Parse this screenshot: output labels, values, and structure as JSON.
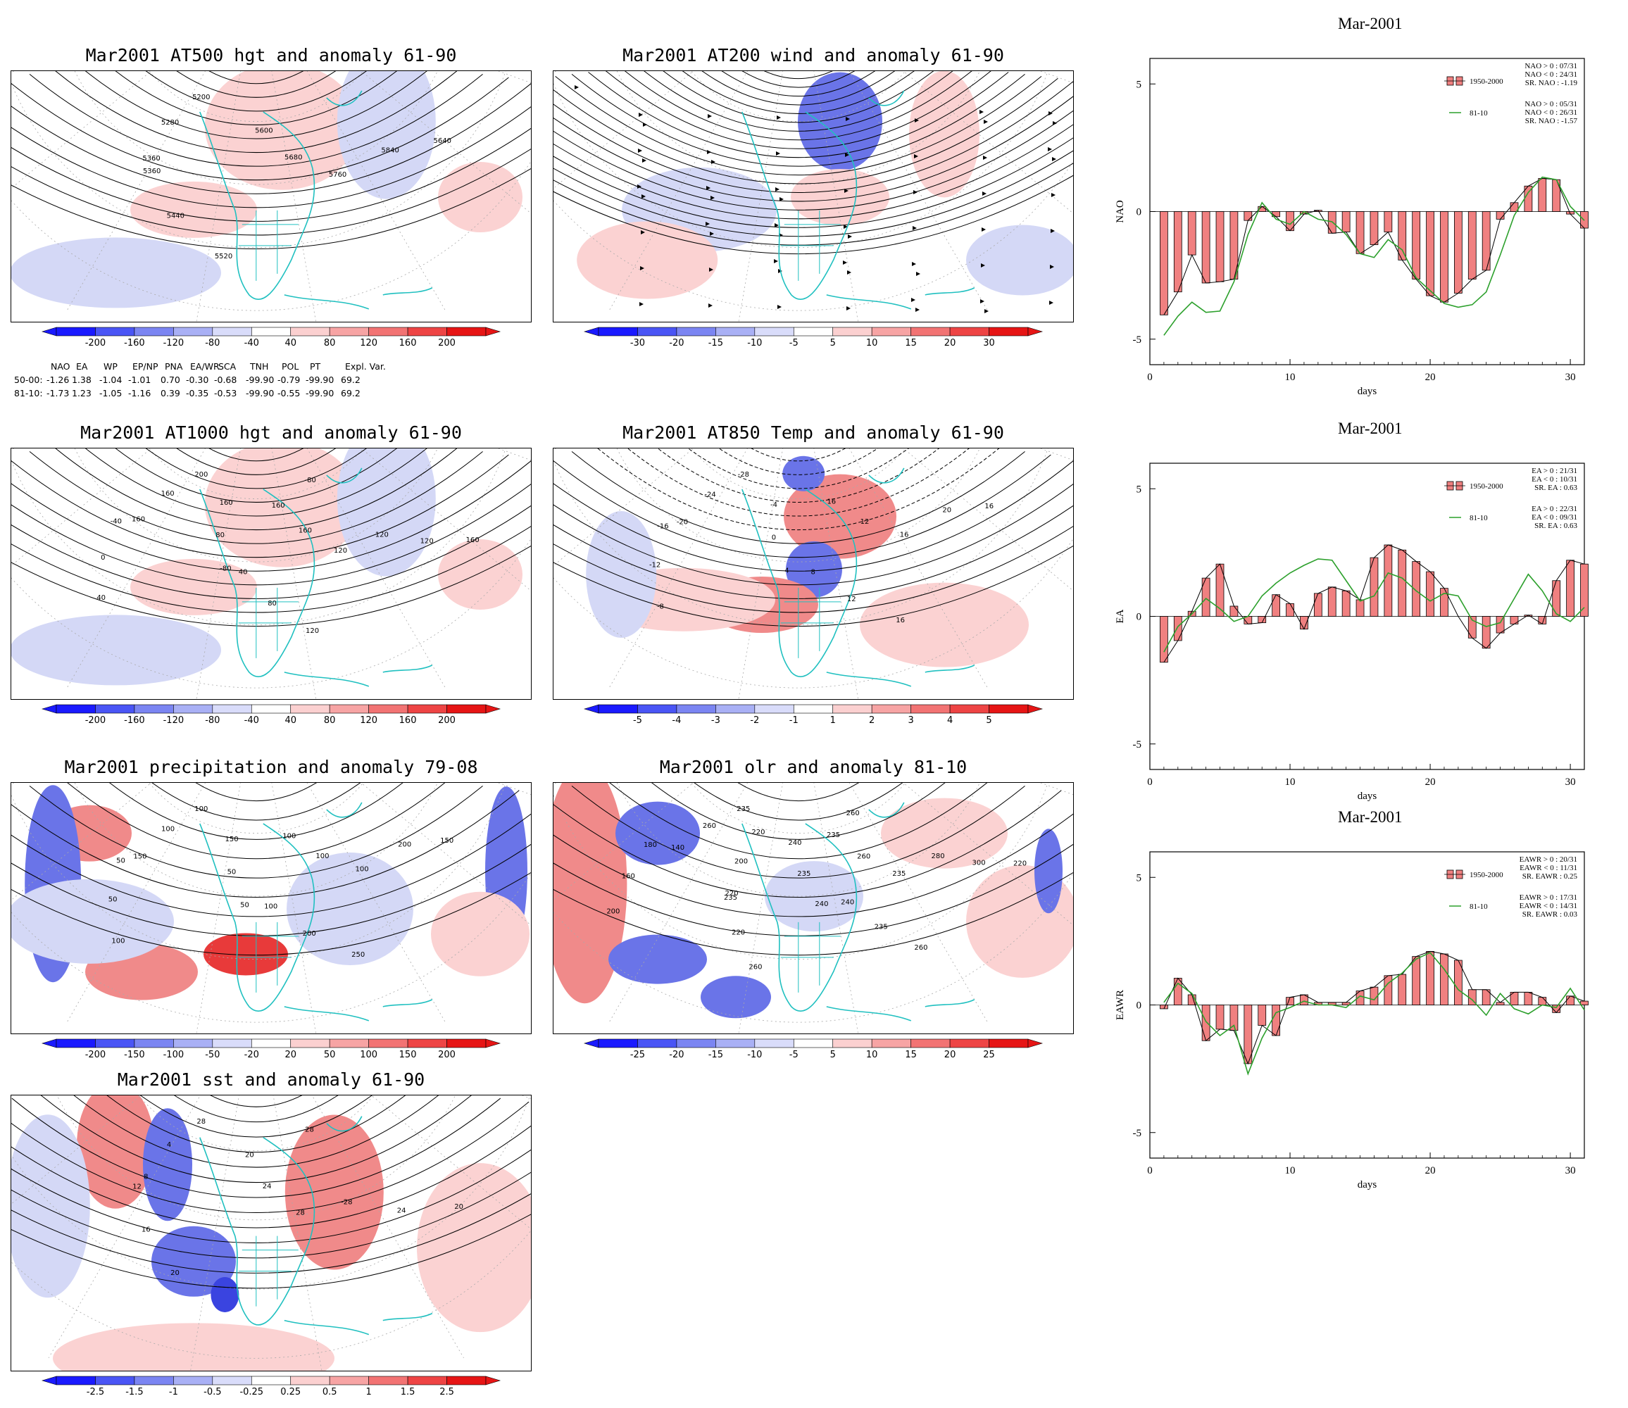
{
  "maps": [
    {
      "id": "at500",
      "title": "Mar2001 AT500 hgt and anomaly 61-90",
      "colorbar": [
        "-200",
        "-160",
        "-120",
        "-80",
        "-40",
        "40",
        "80",
        "120",
        "160",
        "200"
      ],
      "contour_labels": [
        "5200",
        "5280",
        "5360",
        "5360",
        "5440",
        "5520",
        "5600",
        "5680",
        "5760",
        "5840",
        "5640"
      ]
    },
    {
      "id": "at200",
      "title": "Mar2001 AT200 wind and anomaly 61-90",
      "colorbar": [
        "-30",
        "-20",
        "-15",
        "-10",
        "-5",
        "5",
        "10",
        "15",
        "20",
        "30"
      ],
      "contour_labels": []
    },
    {
      "id": "at1000",
      "title": "Mar2001 AT1000 hgt and anomaly 61-90",
      "colorbar": [
        "-200",
        "-160",
        "-120",
        "-80",
        "-40",
        "40",
        "80",
        "120",
        "160",
        "200"
      ],
      "contour_labels": [
        "200",
        "160",
        "160",
        "-40",
        "0",
        "40",
        "160",
        "80",
        "-80",
        "40",
        "80",
        "120",
        "160",
        "160",
        "120",
        "120",
        "120",
        "160",
        "-80"
      ]
    },
    {
      "id": "at850",
      "title": "Mar2001 AT850 Temp and anomaly 61-90",
      "colorbar": [
        "-5",
        "-4",
        "-3",
        "-2",
        "-1",
        "1",
        "2",
        "3",
        "4",
        "5"
      ],
      "contour_labels": [
        "-28",
        "-24",
        "-20",
        "-16",
        "-12",
        "-8",
        "-4",
        "0",
        "4",
        "8",
        "12",
        "16",
        "16",
        "12",
        "16",
        "20",
        "16"
      ]
    },
    {
      "id": "precip",
      "title": "Mar2001 precipitation and anomaly 79-08",
      "colorbar": [
        "-200",
        "-150",
        "-100",
        "-50",
        "-20",
        "20",
        "50",
        "100",
        "150",
        "200"
      ],
      "contour_labels": [
        "100",
        "100",
        "150",
        "50",
        "50",
        "100",
        "150",
        "50",
        "50",
        "100",
        "200",
        "250",
        "100",
        "100",
        "100",
        "200",
        "150"
      ]
    },
    {
      "id": "olr",
      "title": "Mar2001 olr and anomaly 81-10",
      "colorbar": [
        "-25",
        "-20",
        "-15",
        "-10",
        "-5",
        "5",
        "10",
        "15",
        "20",
        "25"
      ],
      "contour_labels": [
        "235",
        "260",
        "140",
        "180",
        "160",
        "200",
        "220",
        "200",
        "220",
        "235",
        "220",
        "260",
        "240",
        "235",
        "240",
        "240",
        "235",
        "260",
        "235",
        "260",
        "235",
        "280",
        "300",
        "220",
        "260"
      ]
    },
    {
      "id": "sst",
      "title": "Mar2001 sst and anomaly 61-90",
      "colorbar": [
        "-2.5",
        "-1.5",
        "-1",
        "-0.5",
        "-0.25",
        "0.25",
        "0.5",
        "1",
        "1.5",
        "2.5"
      ],
      "contour_labels": [
        "28",
        "4",
        "8",
        "12",
        "16",
        "20",
        "20",
        "24",
        "28",
        "-28",
        "24",
        "20",
        "28"
      ]
    }
  ],
  "stats_table": {
    "header": [
      "NAO",
      "EA",
      "WP",
      "EP/NP",
      "PNA",
      "EA/WR",
      "SCA",
      "TNH",
      "POL",
      "PT",
      "Expl. Var."
    ],
    "rows": [
      {
        "label": "50-00:",
        "values": [
          "-1.26",
          "1.38",
          "-1.04",
          "-1.01",
          "0.70",
          "-0.30",
          "-0.68",
          "-99.90",
          "-0.79",
          "-99.90",
          "69.2"
        ]
      },
      {
        "label": "81-10:",
        "values": [
          "-1.73",
          "1.23",
          "-1.05",
          "-1.16",
          "0.39",
          "-0.35",
          "-0.53",
          "-99.90",
          "-0.55",
          "-99.90",
          "69.2"
        ]
      }
    ]
  },
  "chart_data": [
    {
      "type": "bar",
      "title": "Mar-2001",
      "xlabel": "days",
      "ylabel": "NAO",
      "xlim": [
        0,
        31
      ],
      "ylim": [
        -6,
        6
      ],
      "xticks": [
        "0",
        "10",
        "20",
        "30"
      ],
      "yticks": [
        "-5",
        "0",
        "5"
      ],
      "legend": {
        "bar": "1950-2000",
        "line": "81-10"
      },
      "stats_bar": [
        "NAO > 0 : 07/31",
        "NAO < 0 : 24/31",
        "SR. NAO : -1.19"
      ],
      "stats_line": [
        "NAO > 0 : 05/31",
        "NAO < 0 : 26/31",
        "SR. NAO : -1.57"
      ],
      "colors": {
        "bar": "#f08080",
        "line": "#2ca02c"
      },
      "x": [
        1,
        2,
        3,
        4,
        5,
        6,
        7,
        8,
        9,
        10,
        11,
        12,
        13,
        14,
        15,
        16,
        17,
        18,
        19,
        20,
        21,
        22,
        23,
        24,
        25,
        26,
        27,
        28,
        29,
        30,
        31
      ],
      "series": [
        {
          "name": "1950-2000",
          "values": [
            -4.05,
            -3.15,
            -1.7,
            -2.8,
            -2.75,
            -2.65,
            -0.35,
            0.2,
            -0.2,
            -0.75,
            -0.1,
            0.05,
            -0.85,
            -0.8,
            -1.65,
            -1.3,
            -0.8,
            -1.9,
            -2.65,
            -3.3,
            -3.55,
            -3.2,
            -2.65,
            -2.3,
            -0.3,
            0.35,
            1.0,
            1.3,
            1.25,
            -0.1,
            -0.65
          ]
        },
        {
          "name": "81-10",
          "values": [
            -4.85,
            -4.1,
            -3.55,
            -3.95,
            -3.9,
            -2.75,
            -0.9,
            0.35,
            -0.3,
            -0.5,
            0.0,
            -0.3,
            -0.4,
            -0.9,
            -1.65,
            -1.8,
            -1.1,
            -1.5,
            -2.6,
            -3.1,
            -3.6,
            -3.75,
            -3.65,
            -3.15,
            -1.7,
            -0.15,
            0.75,
            1.35,
            1.25,
            0.2,
            -0.35
          ]
        }
      ]
    },
    {
      "type": "bar",
      "title": "Mar-2001",
      "xlabel": "days",
      "ylabel": "EA",
      "xlim": [
        0,
        31
      ],
      "ylim": [
        -6,
        6
      ],
      "xticks": [
        "0",
        "10",
        "20",
        "30"
      ],
      "yticks": [
        "-5",
        "0",
        "5"
      ],
      "legend": {
        "bar": "1950-2000",
        "line": "81-10"
      },
      "stats_bar": [
        "EA > 0 : 21/31",
        "EA < 0 : 10/31",
        "SR. EA : 0.63"
      ],
      "stats_line": [
        "EA > 0 : 22/31",
        "EA < 0 : 09/31",
        "SR. EA : 0.63"
      ],
      "colors": {
        "bar": "#f08080",
        "line": "#2ca02c"
      },
      "x": [
        1,
        2,
        3,
        4,
        5,
        6,
        7,
        8,
        9,
        10,
        11,
        12,
        13,
        14,
        15,
        16,
        17,
        18,
        19,
        20,
        21,
        22,
        23,
        24,
        25,
        26,
        27,
        28,
        29,
        30,
        31
      ],
      "series": [
        {
          "name": "1950-2000",
          "values": [
            -1.8,
            -0.95,
            0.2,
            1.5,
            2.05,
            0.4,
            -0.3,
            -0.25,
            0.85,
            0.5,
            -0.5,
            0.9,
            1.15,
            1.0,
            0.65,
            2.3,
            2.8,
            2.6,
            2.15,
            1.75,
            1.1,
            0.0,
            -0.85,
            -1.25,
            -0.65,
            -0.3,
            0.05,
            -0.3,
            1.4,
            2.2,
            2.05
          ]
        },
        {
          "name": "81-10",
          "values": [
            -1.4,
            -0.4,
            0.1,
            0.7,
            0.3,
            -0.2,
            0.0,
            0.8,
            1.3,
            1.7,
            2.0,
            2.25,
            2.2,
            1.4,
            0.6,
            0.8,
            1.7,
            1.5,
            1.0,
            0.6,
            0.9,
            0.8,
            -0.15,
            -0.4,
            -0.25,
            0.7,
            1.65,
            1.0,
            0.1,
            -0.2,
            0.35
          ]
        }
      ]
    },
    {
      "type": "bar",
      "title": "Mar-2001",
      "xlabel": "days",
      "ylabel": "EAWR",
      "xlim": [
        0,
        31
      ],
      "ylim": [
        -6,
        6
      ],
      "xticks": [
        "0",
        "10",
        "20",
        "30"
      ],
      "yticks": [
        "-5",
        "0",
        "5"
      ],
      "legend": {
        "bar": "1950-2000",
        "line": "81-10"
      },
      "stats_bar": [
        "EAWR > 0 : 20/31",
        "EAWR < 0 : 11/31",
        "SR. EAWR : 0.25"
      ],
      "stats_line": [
        "EAWR > 0 : 17/31",
        "EAWR < 0 : 14/31",
        "SR. EAWR : 0.03"
      ],
      "colors": {
        "bar": "#f08080",
        "line": "#2ca02c"
      },
      "x": [
        1,
        2,
        3,
        4,
        5,
        6,
        7,
        8,
        9,
        10,
        11,
        12,
        13,
        14,
        15,
        16,
        17,
        18,
        19,
        20,
        21,
        22,
        23,
        24,
        25,
        26,
        27,
        28,
        29,
        30,
        31
      ],
      "series": [
        {
          "name": "1950-2000",
          "values": [
            -0.15,
            1.05,
            0.4,
            -1.4,
            -0.95,
            -1.0,
            -2.3,
            -0.8,
            -1.2,
            0.3,
            0.4,
            0.1,
            0.1,
            0.1,
            0.55,
            0.7,
            1.15,
            1.2,
            1.9,
            2.1,
            2.0,
            1.75,
            0.6,
            0.6,
            0.1,
            0.5,
            0.5,
            0.3,
            -0.3,
            0.35,
            0.15
          ]
        },
        {
          "name": "81-10",
          "values": [
            0.1,
            0.85,
            0.45,
            -0.65,
            -1.2,
            -0.8,
            -2.7,
            -1.3,
            -0.3,
            -0.1,
            0.15,
            0.0,
            0.0,
            -0.1,
            0.35,
            0.2,
            0.85,
            1.25,
            1.8,
            2.05,
            1.4,
            0.6,
            0.2,
            -0.4,
            0.45,
            -0.15,
            -0.35,
            0.0,
            -0.1,
            0.65,
            -0.2
          ]
        }
      ]
    }
  ]
}
